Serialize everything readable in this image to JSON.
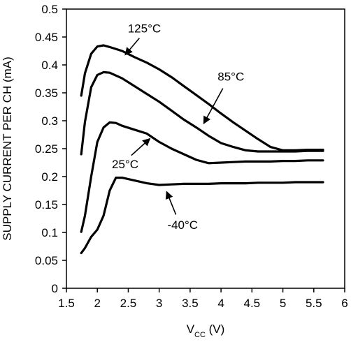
{
  "chart_data": {
    "type": "line",
    "title": "",
    "xlabel": {
      "main": "V",
      "sub": "CC",
      "unit": " (V)"
    },
    "ylabel": "SUPPLY CURRENT PER CH (mA)",
    "xlim": [
      1.5,
      6
    ],
    "ylim": [
      0,
      0.5
    ],
    "xticks": [
      "1.5",
      "2",
      "2.5",
      "3",
      "3.5",
      "4",
      "4.5",
      "5",
      "5.5",
      "6"
    ],
    "yticks": [
      "0",
      "0.05",
      "0.1",
      "0.15",
      "0.2",
      "0.25",
      "0.3",
      "0.35",
      "0.4",
      "0.45",
      "0.5"
    ],
    "grid": false,
    "series_color": "#000000",
    "series": [
      {
        "name": "125°C",
        "x": [
          1.74,
          1.8,
          1.9,
          2.0,
          2.1,
          2.2,
          2.4,
          2.6,
          2.8,
          3.0,
          3.2,
          3.4,
          3.6,
          3.8,
          4.0,
          4.2,
          4.4,
          4.6,
          4.8,
          5.0,
          5.2,
          5.4,
          5.65
        ],
        "y": [
          0.345,
          0.385,
          0.42,
          0.433,
          0.435,
          0.432,
          0.425,
          0.414,
          0.404,
          0.392,
          0.378,
          0.362,
          0.346,
          0.33,
          0.313,
          0.297,
          0.282,
          0.267,
          0.253,
          0.247,
          0.247,
          0.248,
          0.248
        ]
      },
      {
        "name": "85°C",
        "x": [
          1.74,
          1.8,
          1.9,
          2.0,
          2.1,
          2.2,
          2.4,
          2.6,
          2.8,
          3.0,
          3.2,
          3.4,
          3.6,
          3.8,
          4.0,
          4.2,
          4.4,
          4.6,
          4.8,
          5.0,
          5.2,
          5.4,
          5.65
        ],
        "y": [
          0.24,
          0.298,
          0.36,
          0.382,
          0.387,
          0.386,
          0.376,
          0.362,
          0.348,
          0.334,
          0.318,
          0.302,
          0.288,
          0.273,
          0.26,
          0.253,
          0.247,
          0.245,
          0.245,
          0.245,
          0.245,
          0.246,
          0.246
        ]
      },
      {
        "name": "25°C",
        "x": [
          1.74,
          1.8,
          1.9,
          2.0,
          2.1,
          2.2,
          2.3,
          2.4,
          2.6,
          2.8,
          3.0,
          3.2,
          3.4,
          3.6,
          3.8,
          4.0,
          4.2,
          4.4,
          4.6,
          4.8,
          5.0,
          5.2,
          5.4,
          5.65
        ],
        "y": [
          0.101,
          0.13,
          0.2,
          0.262,
          0.288,
          0.297,
          0.296,
          0.291,
          0.284,
          0.277,
          0.262,
          0.25,
          0.24,
          0.23,
          0.224,
          0.225,
          0.226,
          0.227,
          0.227,
          0.227,
          0.228,
          0.228,
          0.229,
          0.229
        ]
      },
      {
        "name": "-40°C",
        "x": [
          1.74,
          1.8,
          1.9,
          2.0,
          2.1,
          2.2,
          2.3,
          2.4,
          2.6,
          2.8,
          3.0,
          3.2,
          3.4,
          3.6,
          3.8,
          4.0,
          4.2,
          4.4,
          4.6,
          4.8,
          5.0,
          5.2,
          5.4,
          5.65
        ],
        "y": [
          0.063,
          0.072,
          0.092,
          0.105,
          0.13,
          0.175,
          0.198,
          0.198,
          0.193,
          0.188,
          0.185,
          0.186,
          0.187,
          0.187,
          0.187,
          0.188,
          0.188,
          0.188,
          0.189,
          0.189,
          0.189,
          0.19,
          0.19,
          0.19
        ]
      }
    ],
    "annotations": [
      {
        "text": "125°C",
        "text_x": 2.76,
        "text_y": 0.458,
        "arrow_from": [
          2.68,
          0.448
        ],
        "arrow_to": [
          2.45,
          0.418
        ]
      },
      {
        "text": "85°C",
        "text_x": 4.16,
        "text_y": 0.372,
        "arrow_from": [
          4.03,
          0.358
        ],
        "arrow_to": [
          3.72,
          0.295
        ]
      },
      {
        "text": "25°C",
        "text_x": 2.45,
        "text_y": 0.215,
        "arrow_from": [
          2.55,
          0.238
        ],
        "arrow_to": [
          2.85,
          0.268
        ]
      },
      {
        "text": "-40°C",
        "text_x": 3.38,
        "text_y": 0.106,
        "arrow_from": [
          3.27,
          0.132
        ],
        "arrow_to": [
          3.12,
          0.173
        ]
      }
    ]
  }
}
